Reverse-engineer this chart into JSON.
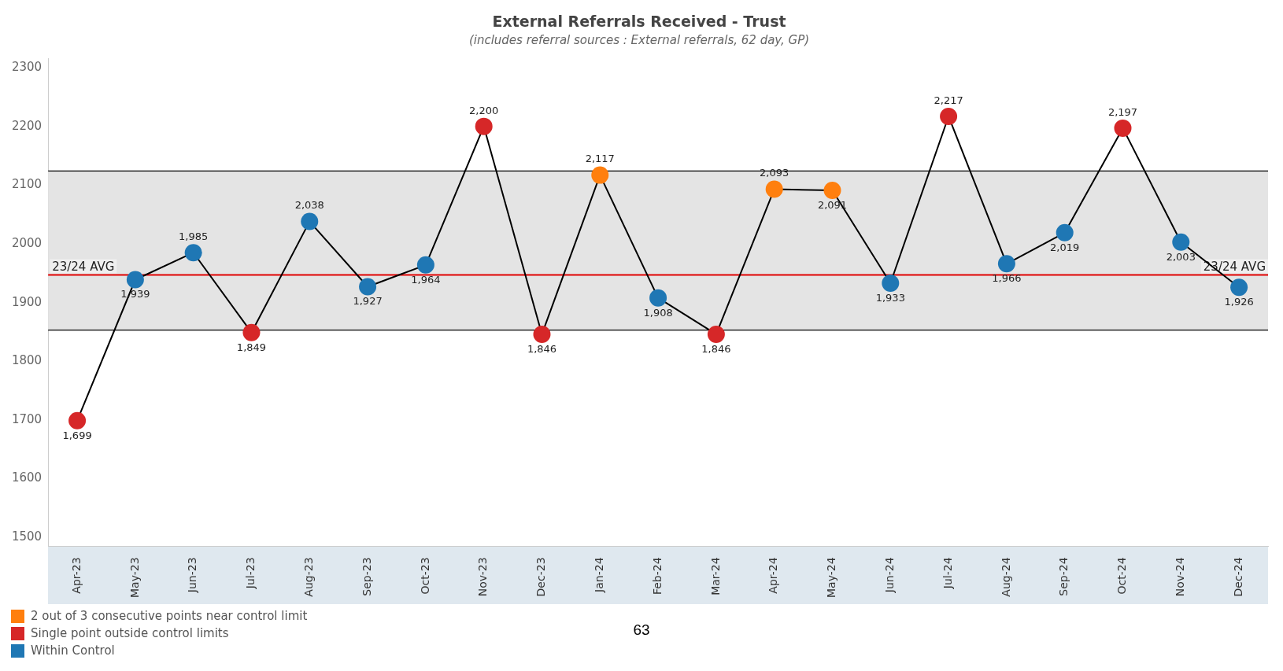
{
  "chart_data": {
    "type": "line",
    "title": "External Referrals Received - Trust",
    "subtitle": "(includes referral sources : External referrals, 62 day, GP)",
    "categories": [
      "Apr-23",
      "May-23",
      "Jun-23",
      "Jul-23",
      "Aug-23",
      "Sep-23",
      "Oct-23",
      "Nov-23",
      "Dec-23",
      "Jan-24",
      "Feb-24",
      "Mar-24",
      "Apr-24",
      "May-24",
      "Jun-24",
      "Jul-24",
      "Aug-24",
      "Sep-24",
      "Oct-24",
      "Nov-24",
      "Dec-24"
    ],
    "series": [
      {
        "color": "#000000",
        "marker": "none",
        "values": [
          1699,
          1939,
          1985,
          1849,
          2038,
          1927,
          1964,
          2200,
          1846,
          2117,
          1908,
          1846,
          2093,
          2091,
          1933,
          2217,
          1966,
          2019,
          2197,
          2003,
          1926
        ],
        "value_labels": [
          "1,699",
          "1,939",
          "1,985",
          "1,849",
          "2,038",
          "1,927",
          "1,964",
          "2,200",
          "1,846",
          "2,117",
          "1,908",
          "1,846",
          "2,093",
          "2,091",
          "1,933",
          "2,217",
          "1,966",
          "2,019",
          "2,197",
          "2,003",
          "1,926"
        ]
      },
      {
        "type": "scatter",
        "name": "2 out of 3 consecutive points near control limit",
        "color": "#ff7f0e",
        "marker": "circle",
        "values": [
          null,
          null,
          null,
          null,
          null,
          null,
          null,
          null,
          null,
          2117,
          null,
          null,
          2093,
          2091,
          null,
          null,
          null,
          null,
          null,
          null,
          null
        ]
      },
      {
        "type": "scatter",
        "name": "Single point outside control limits",
        "color": "#d62728",
        "marker": "circle",
        "values": [
          1699,
          null,
          null,
          1849,
          null,
          null,
          null,
          2200,
          1846,
          null,
          null,
          1846,
          null,
          null,
          null,
          2217,
          null,
          null,
          2197,
          null,
          null
        ]
      },
      {
        "type": "scatter",
        "name": "Within Control",
        "color": "#1f77b4",
        "marker": "circle",
        "values": [
          null,
          1939,
          1985,
          null,
          2038,
          1927,
          1964,
          null,
          null,
          null,
          1908,
          null,
          null,
          null,
          1933,
          null,
          1966,
          2019,
          null,
          2003,
          1926
        ]
      }
    ],
    "ylim": [
      1485,
      2315
    ],
    "yticks": [
      1500,
      1600,
      1700,
      1800,
      1900,
      2000,
      2100,
      2200,
      2300
    ],
    "grid": false,
    "legend": "bottom left",
    "bands": [
      {
        "axis": "y",
        "from": 1853,
        "to": 2124,
        "color": "#e4e4e4"
      }
    ],
    "ref_lines": [
      {
        "axis": "y",
        "value": 1947,
        "label": "23/24 AVG",
        "color": "#e00000"
      },
      {
        "axis": "y",
        "value": 2124,
        "color": "#000000"
      },
      {
        "axis": "y",
        "value": 1853,
        "color": "#000000"
      }
    ],
    "annotations": [
      "63"
    ]
  }
}
